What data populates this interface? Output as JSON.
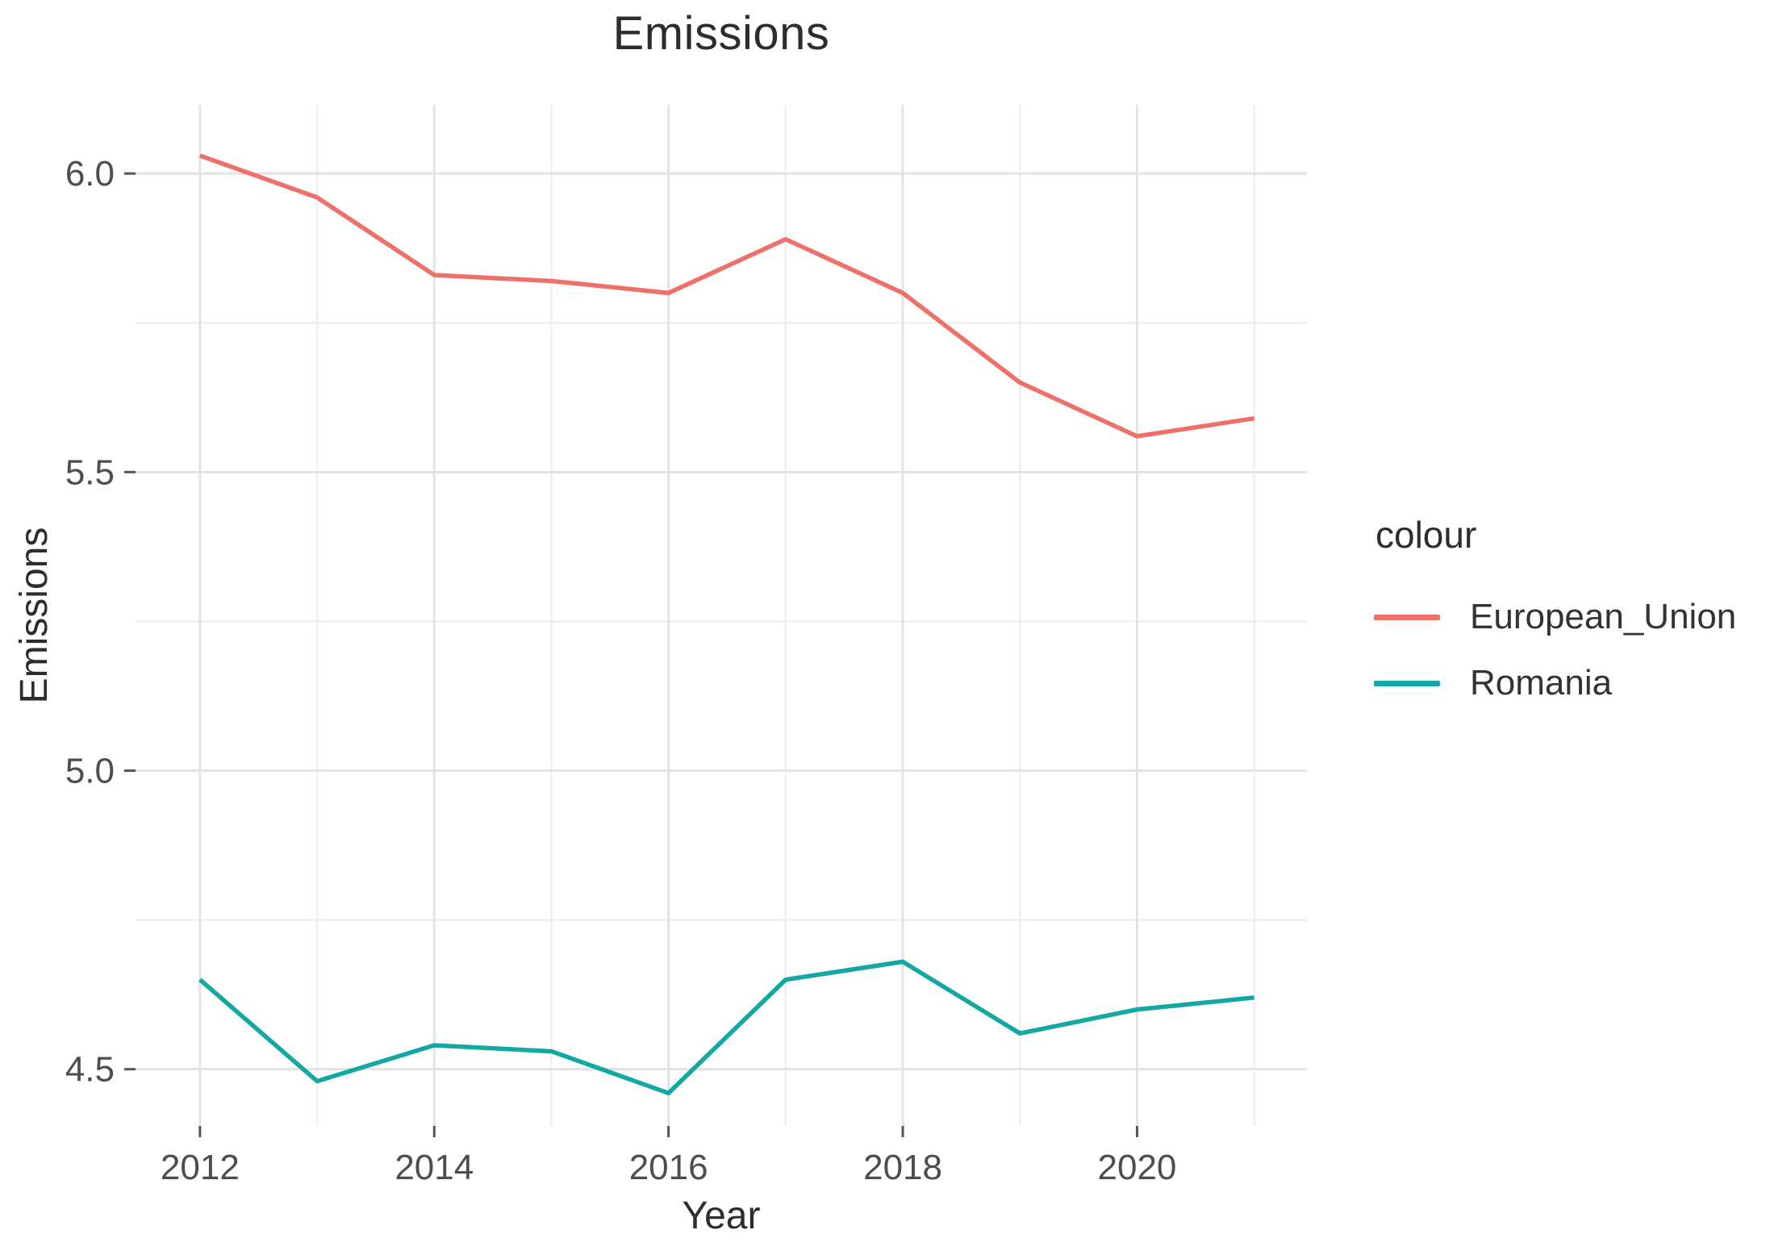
{
  "figure": {
    "title": "Emissions",
    "background": "#ffffff"
  },
  "axes": {
    "x": {
      "label": "Year",
      "tick_labels": [
        "2012",
        "2014",
        "2016",
        "2018",
        "2020"
      ],
      "minor_years": [
        2013,
        2015,
        2017,
        2019,
        2021
      ]
    },
    "y": {
      "label": "Emissions",
      "tick_labels": [
        "6.0",
        "5.5",
        "5.0",
        "4.5"
      ],
      "minor_values": [
        5.75,
        5.25,
        4.75
      ]
    }
  },
  "legend": {
    "title": "colour",
    "entries": [
      {
        "label": "European_Union",
        "color": "#ed7168"
      },
      {
        "label": "Romania",
        "color": "#14a8a3"
      }
    ]
  },
  "style": {
    "grid_major_color": "#e3e3e3",
    "grid_minor_color": "#efefef",
    "tick_color": "#555555",
    "tick_label_color": "#4d4d4d",
    "line_width": 5.5
  },
  "chart_data": {
    "type": "line",
    "title": "Emissions",
    "xlabel": "Year",
    "ylabel": "Emissions",
    "x": [
      2012,
      2013,
      2014,
      2015,
      2016,
      2017,
      2018,
      2019,
      2020,
      2021
    ],
    "series": [
      {
        "name": "European_Union",
        "color": "#ed7168",
        "values": [
          6.03,
          5.96,
          5.83,
          5.82,
          5.8,
          5.89,
          5.8,
          5.65,
          5.56,
          5.59
        ]
      },
      {
        "name": "Romania",
        "color": "#14a8a3",
        "values": [
          4.65,
          4.48,
          4.54,
          4.53,
          4.46,
          4.65,
          4.68,
          4.56,
          4.6,
          4.62
        ]
      }
    ],
    "x_major_ticks": [
      2012,
      2014,
      2016,
      2018,
      2020
    ],
    "y_major_ticks": [
      6.0,
      5.5,
      5.0,
      4.5
    ],
    "xlim": [
      2011.45,
      2021.45
    ],
    "ylim": [
      4.405,
      6.115
    ],
    "grid": true,
    "legend_position": "right",
    "legend_title": "colour"
  }
}
